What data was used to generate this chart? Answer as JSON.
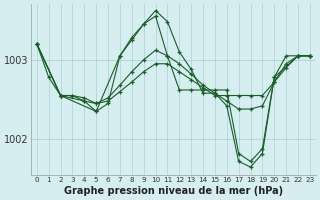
{
  "bg_color": "#d6eef0",
  "line_color": "#1a5c2a",
  "grid_color": "#aacfd4",
  "xlabel": "Graphe pression niveau de la mer (hPa)",
  "ylabel_ticks": [
    1002,
    1003
  ],
  "xlim": [
    -0.5,
    23.5
  ],
  "ylim": [
    1001.55,
    1003.7
  ],
  "series": [
    {
      "x": [
        0,
        1,
        2,
        3,
        4,
        5,
        6,
        7,
        8,
        9,
        10,
        11,
        12,
        13,
        14,
        15,
        16,
        17,
        18,
        19,
        20,
        21,
        22,
        23
      ],
      "y": [
        1003.2,
        1002.78,
        1002.55,
        1002.55,
        1002.52,
        1002.45,
        1002.48,
        1002.6,
        1002.72,
        1002.85,
        1002.95,
        1002.95,
        1002.85,
        1002.75,
        1002.65,
        1002.55,
        1002.55,
        1002.55,
        1002.55,
        1002.55,
        1002.72,
        1002.9,
        1003.05,
        1003.05
      ]
    },
    {
      "x": [
        0,
        2,
        3,
        4,
        5,
        6,
        7,
        8,
        9,
        10,
        11,
        12,
        13,
        14,
        15,
        16,
        17,
        18,
        19,
        20,
        21,
        22,
        23
      ],
      "y": [
        1003.2,
        1002.55,
        1002.55,
        1002.48,
        1002.45,
        1002.52,
        1002.68,
        1002.85,
        1003.0,
        1003.12,
        1003.05,
        1002.95,
        1002.82,
        1002.68,
        1002.58,
        1002.48,
        1002.38,
        1002.38,
        1002.42,
        1002.72,
        1002.95,
        1003.05,
        1003.05
      ]
    },
    {
      "x": [
        0,
        2,
        4,
        5,
        6,
        7,
        8,
        9,
        10,
        11,
        12,
        13,
        14,
        15,
        16,
        17,
        18,
        19,
        20,
        21,
        22,
        23
      ],
      "y": [
        1003.2,
        1002.55,
        1002.48,
        1002.35,
        1002.45,
        1003.05,
        1003.25,
        1003.45,
        1003.55,
        1003.05,
        1002.62,
        1002.62,
        1002.62,
        1002.62,
        1002.62,
        1001.82,
        1001.72,
        1001.88,
        1002.78,
        1003.05,
        1003.05,
        1003.05
      ]
    },
    {
      "x": [
        0,
        2,
        5,
        7,
        8,
        9,
        10,
        11,
        12,
        13,
        14,
        15,
        16,
        17,
        18,
        19,
        20,
        22,
        23
      ],
      "y": [
        1003.2,
        1002.55,
        1002.35,
        1003.05,
        1003.28,
        1003.45,
        1003.62,
        1003.48,
        1003.1,
        1002.88,
        1002.58,
        1002.58,
        1002.42,
        1001.72,
        1001.65,
        1001.82,
        1002.78,
        1003.05,
        1003.05
      ]
    }
  ],
  "xtick_labels": [
    "0",
    "1",
    "2",
    "3",
    "4",
    "5",
    "6",
    "7",
    "8",
    "9",
    "10",
    "11",
    "12",
    "13",
    "14",
    "15",
    "16",
    "17",
    "18",
    "19",
    "20",
    "21",
    "22",
    "23"
  ]
}
